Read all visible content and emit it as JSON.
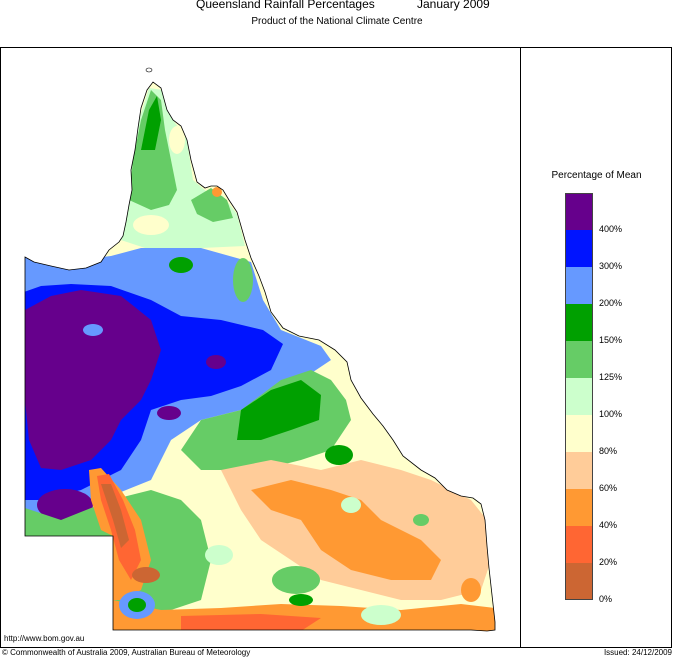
{
  "header": {
    "title": "Queensland Rainfall Percentages",
    "period": "January 2009",
    "subtitle": "Product of the National Climate Centre"
  },
  "legend": {
    "title": "Percentage of Mean",
    "bands": [
      {
        "label": "400%",
        "color": "#66008c"
      },
      {
        "label": "300%",
        "color": "#0014ff"
      },
      {
        "label": "200%",
        "color": "#6699ff"
      },
      {
        "label": "150%",
        "color": "#00a000"
      },
      {
        "label": "125%",
        "color": "#66cc66"
      },
      {
        "label": "100%",
        "color": "#ccffcc"
      },
      {
        "label": "80%",
        "color": "#ffffcc"
      },
      {
        "label": "60%",
        "color": "#ffcc99"
      },
      {
        "label": "40%",
        "color": "#ff9933"
      },
      {
        "label": "20%",
        "color": "#ff6633"
      },
      {
        "label": "0%",
        "color": "#cc6633"
      }
    ]
  },
  "footer": {
    "url": "http://www.bom.gov.au",
    "copyright": "© Commonwealth of Australia 2009, Australian Bureau of Meteorology",
    "issued": "Issued: 24/12/2009"
  }
}
